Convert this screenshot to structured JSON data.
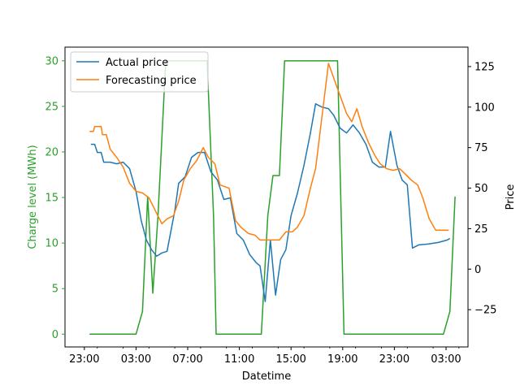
{
  "chart_data": {
    "type": "line",
    "xlabel": "Datetime",
    "ylabel_left": "Charge level (MWh)",
    "ylabel_right": "Price",
    "xlim_hours": [
      -1.5,
      29.7
    ],
    "ylim_left": [
      -1.4,
      31.5
    ],
    "ylim_right": [
      -48,
      137
    ],
    "grid": false,
    "legend_position": "top-left",
    "x_ticks": [
      {
        "hour": 0,
        "label": "23:00"
      },
      {
        "hour": 4,
        "label": "03:00"
      },
      {
        "hour": 8,
        "label": "07:00"
      },
      {
        "hour": 12,
        "label": "11:00"
      },
      {
        "hour": 16,
        "label": "15:00"
      },
      {
        "hour": 20,
        "label": "19:00"
      },
      {
        "hour": 24,
        "label": "23:00"
      },
      {
        "hour": 28,
        "label": "03:00"
      }
    ],
    "y_ticks_left": [
      0,
      5,
      10,
      15,
      20,
      25,
      30
    ],
    "y_ticks_right": [
      -25,
      0,
      25,
      50,
      75,
      100,
      125
    ],
    "colors": {
      "actual": "#1f77b4",
      "forecast": "#ff7f0e",
      "charge": "#2ca02c"
    },
    "series": [
      {
        "name": "Actual price",
        "axis": "right",
        "color": "#1f77b4",
        "points": [
          [
            0.5,
            77
          ],
          [
            0.8,
            77
          ],
          [
            1.0,
            72
          ],
          [
            1.3,
            72
          ],
          [
            1.5,
            66
          ],
          [
            2.0,
            66
          ],
          [
            2.5,
            65
          ],
          [
            3.0,
            66
          ],
          [
            3.5,
            62
          ],
          [
            4.0,
            48
          ],
          [
            4.4,
            30
          ],
          [
            4.8,
            18
          ],
          [
            5.2,
            12
          ],
          [
            5.6,
            8
          ],
          [
            6.0,
            10
          ],
          [
            6.4,
            11
          ],
          [
            7.0,
            36
          ],
          [
            7.3,
            53
          ],
          [
            7.8,
            57
          ],
          [
            8.3,
            69
          ],
          [
            8.8,
            72
          ],
          [
            9.3,
            72
          ],
          [
            9.8,
            60
          ],
          [
            10.3,
            55
          ],
          [
            10.8,
            43
          ],
          [
            11.3,
            44
          ],
          [
            11.8,
            22
          ],
          [
            12.3,
            18
          ],
          [
            12.8,
            9
          ],
          [
            13.3,
            4
          ],
          [
            13.6,
            2
          ],
          [
            14.0,
            -20
          ],
          [
            14.4,
            18
          ],
          [
            14.8,
            -16
          ],
          [
            15.2,
            6
          ],
          [
            15.6,
            12
          ],
          [
            16.0,
            33
          ],
          [
            16.5,
            47
          ],
          [
            17.0,
            64
          ],
          [
            17.5,
            84
          ],
          [
            17.9,
            102
          ],
          [
            18.4,
            100
          ],
          [
            18.9,
            99
          ],
          [
            19.3,
            95
          ],
          [
            19.8,
            87
          ],
          [
            20.3,
            84
          ],
          [
            20.8,
            89
          ],
          [
            21.3,
            84
          ],
          [
            21.8,
            77
          ],
          [
            22.3,
            66
          ],
          [
            22.8,
            63
          ],
          [
            23.3,
            63
          ],
          [
            23.7,
            85
          ],
          [
            24.2,
            64
          ],
          [
            24.6,
            55
          ],
          [
            25.0,
            52
          ],
          [
            25.4,
            13
          ],
          [
            25.9,
            15
          ],
          [
            26.6,
            15.5
          ],
          [
            27.4,
            16.5
          ],
          [
            28.1,
            18
          ],
          [
            28.3,
            19
          ]
        ]
      },
      {
        "name": "Forecasting price",
        "axis": "right",
        "color": "#ff7f0e",
        "points": [
          [
            0.4,
            85
          ],
          [
            0.7,
            85
          ],
          [
            0.8,
            88
          ],
          [
            1.3,
            88
          ],
          [
            1.4,
            83
          ],
          [
            1.7,
            83
          ],
          [
            2.0,
            74
          ],
          [
            2.5,
            69
          ],
          [
            3.0,
            63
          ],
          [
            3.5,
            53
          ],
          [
            4.0,
            48
          ],
          [
            4.5,
            47
          ],
          [
            5.0,
            44
          ],
          [
            5.5,
            36
          ],
          [
            6.0,
            28
          ],
          [
            6.4,
            31
          ],
          [
            6.9,
            33
          ],
          [
            7.3,
            42
          ],
          [
            7.7,
            55
          ],
          [
            8.2,
            62
          ],
          [
            8.7,
            67
          ],
          [
            9.2,
            75
          ],
          [
            9.6,
            69
          ],
          [
            10.1,
            65
          ],
          [
            10.5,
            52
          ],
          [
            11.2,
            50
          ],
          [
            11.7,
            30
          ],
          [
            12.1,
            26
          ],
          [
            12.7,
            22
          ],
          [
            13.2,
            21
          ],
          [
            13.6,
            18
          ],
          [
            14.1,
            18
          ],
          [
            14.6,
            18
          ],
          [
            15.1,
            18
          ],
          [
            15.6,
            23
          ],
          [
            16.1,
            23
          ],
          [
            16.5,
            26
          ],
          [
            17.0,
            33
          ],
          [
            17.5,
            50
          ],
          [
            17.9,
            62
          ],
          [
            18.5,
            101
          ],
          [
            18.9,
            127
          ],
          [
            19.3,
            118
          ],
          [
            19.8,
            107
          ],
          [
            20.3,
            96
          ],
          [
            20.7,
            91
          ],
          [
            21.1,
            99
          ],
          [
            21.5,
            88
          ],
          [
            22.0,
            78
          ],
          [
            22.5,
            70
          ],
          [
            22.9,
            65
          ],
          [
            23.4,
            62
          ],
          [
            23.9,
            61
          ],
          [
            24.4,
            62
          ],
          [
            24.8,
            59
          ],
          [
            25.3,
            55
          ],
          [
            25.8,
            52
          ],
          [
            26.2,
            44
          ],
          [
            26.7,
            31
          ],
          [
            27.2,
            24
          ],
          [
            27.7,
            24
          ],
          [
            28.2,
            24
          ]
        ]
      },
      {
        "name": "Charge level",
        "axis": "left",
        "color": "#2ca02c",
        "points": [
          [
            0.4,
            0
          ],
          [
            4.0,
            0
          ],
          [
            4.5,
            2.5
          ],
          [
            4.9,
            15.1
          ],
          [
            5.3,
            4.5
          ],
          [
            5.7,
            13
          ],
          [
            6.3,
            30
          ],
          [
            9.5,
            30
          ],
          [
            10.0,
            13
          ],
          [
            10.2,
            0
          ],
          [
            13.7,
            0
          ],
          [
            14.2,
            13
          ],
          [
            14.6,
            17.4
          ],
          [
            15.1,
            17.4
          ],
          [
            15.5,
            30
          ],
          [
            19.6,
            30
          ],
          [
            20.1,
            0
          ],
          [
            27.8,
            0
          ],
          [
            28.3,
            2.5
          ],
          [
            28.7,
            15.1
          ]
        ]
      }
    ]
  }
}
